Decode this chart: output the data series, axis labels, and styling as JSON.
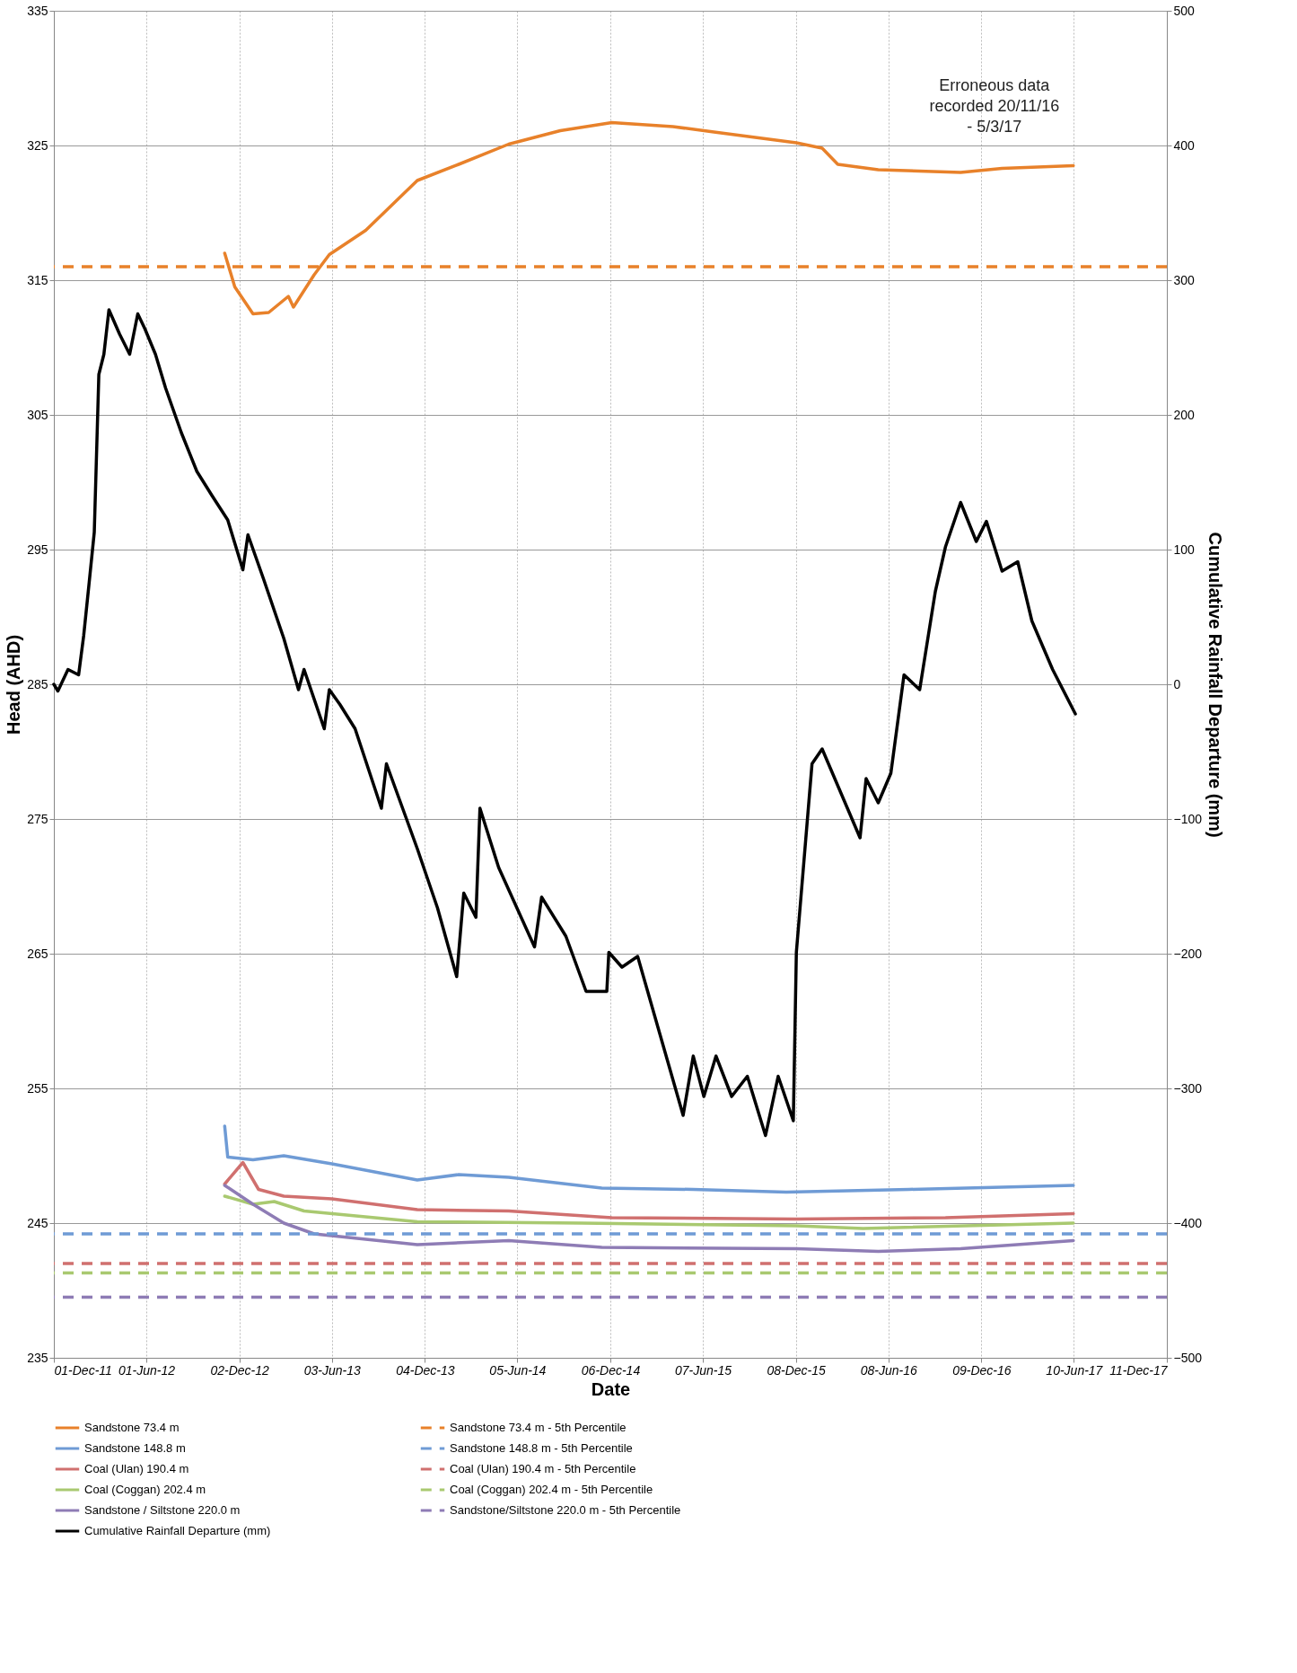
{
  "chart_data": {
    "type": "line",
    "xlabel": "Date",
    "ylabel": "Head (AHD)",
    "y2label": "Cumulative Rainfall Departure (mm)",
    "xlim": [
      "2011-12-01",
      "2017-12-11"
    ],
    "xticks": [
      {
        "value": "2011-12-01",
        "label": "01-Dec-11"
      },
      {
        "value": "2012-06-01",
        "label": "01-Jun-12"
      },
      {
        "value": "2012-12-02",
        "label": "02-Dec-12"
      },
      {
        "value": "2013-06-03",
        "label": "03-Jun-13"
      },
      {
        "value": "2013-12-04",
        "label": "04-Dec-13"
      },
      {
        "value": "2014-06-05",
        "label": "05-Jun-14"
      },
      {
        "value": "2014-12-06",
        "label": "06-Dec-14"
      },
      {
        "value": "2015-06-07",
        "label": "07-Jun-15"
      },
      {
        "value": "2015-12-08",
        "label": "08-Dec-15"
      },
      {
        "value": "2016-06-08",
        "label": "08-Jun-16"
      },
      {
        "value": "2016-12-09",
        "label": "09-Dec-16"
      },
      {
        "value": "2017-06-10",
        "label": "10-Jun-17"
      },
      {
        "value": "2017-12-11",
        "label": "11-Dec-17"
      }
    ],
    "ylim": [
      235,
      335
    ],
    "yticks": [
      235,
      245,
      255,
      265,
      275,
      285,
      295,
      305,
      315,
      325,
      335
    ],
    "y2lim": [
      -500,
      500
    ],
    "y2ticks": [
      -500,
      -400,
      -300,
      -200,
      -100,
      0,
      100,
      200,
      300,
      400,
      500
    ],
    "grid": true,
    "legend": "bottom",
    "series": [
      {
        "name": "Sandstone 73.4 m",
        "color": "#e8812a",
        "x": [
          "2012-11-03",
          "2012-11-23",
          "2012-12-29",
          "2013-01-29",
          "2013-03-09",
          "2013-03-19",
          "2013-04-29",
          "2013-05-29",
          "2013-08-09",
          "2013-11-19",
          "2014-02-09",
          "2014-05-19",
          "2014-08-29",
          "2014-12-09",
          "2015-04-09",
          "2015-06-29",
          "2015-12-09",
          "2016-01-29",
          "2016-02-29",
          "2016-05-19",
          "2016-10-29",
          "2017-01-19",
          "2017-06-09"
        ],
        "values": [
          317.0,
          314.5,
          312.5,
          312.6,
          313.8,
          313.0,
          315.4,
          316.9,
          318.7,
          322.4,
          323.6,
          325.1,
          326.1,
          326.7,
          326.4,
          326.0,
          325.2,
          324.8,
          323.6,
          323.2,
          323.0,
          323.3,
          323.5
        ]
      },
      {
        "name": "Sandstone 148.8 m",
        "color": "#6f9bd5",
        "x": [
          "2012-11-03",
          "2012-11-09",
          "2012-12-29",
          "2013-02-28",
          "2013-06-03",
          "2013-11-19",
          "2014-02-09",
          "2014-05-19",
          "2014-11-19",
          "2015-05-19",
          "2015-11-19",
          "2016-07-19",
          "2017-06-09"
        ],
        "values": [
          252.2,
          249.9,
          249.7,
          250.0,
          249.4,
          248.2,
          248.6,
          248.4,
          247.6,
          247.5,
          247.3,
          247.5,
          247.8
        ]
      },
      {
        "name": "Coal (Ulan) 190.4 m",
        "color": "#d0706f",
        "x": [
          "2012-11-03",
          "2012-12-09",
          "2013-01-09",
          "2013-02-28",
          "2013-06-03",
          "2013-11-19",
          "2014-05-19",
          "2014-12-09",
          "2015-12-09",
          "2016-09-29",
          "2017-06-09"
        ],
        "values": [
          247.9,
          249.5,
          247.5,
          247.0,
          246.8,
          246.0,
          245.9,
          245.4,
          245.3,
          245.4,
          245.7
        ]
      },
      {
        "name": "Coal (Coggan) 202.4 m",
        "color": "#a9c970",
        "x": [
          "2012-11-03",
          "2012-12-29",
          "2013-02-09",
          "2013-04-09",
          "2013-11-19",
          "2014-10-09",
          "2015-12-09",
          "2016-04-19",
          "2017-06-09"
        ],
        "values": [
          247.0,
          246.4,
          246.6,
          245.9,
          245.1,
          245.0,
          244.8,
          244.6,
          245.0
        ]
      },
      {
        "name": "Sandstone / Siltstone 220.0 m",
        "color": "#8e7cb5",
        "x": [
          "2012-11-03",
          "2012-12-29",
          "2013-02-28",
          "2013-04-29",
          "2013-11-19",
          "2014-05-19",
          "2014-11-19",
          "2015-12-09",
          "2016-05-19",
          "2016-10-29",
          "2017-06-09"
        ],
        "values": [
          247.8,
          246.4,
          245.0,
          244.2,
          243.4,
          243.7,
          243.2,
          243.1,
          242.9,
          243.1,
          243.7
        ]
      },
      {
        "name": "Cumulative Rainfall Departure (mm)",
        "color": "#000000",
        "axis": "y2",
        "x": [
          "2011-12-01",
          "2011-12-09",
          "2011-12-29",
          "2012-01-19",
          "2012-01-29",
          "2012-02-09",
          "2012-02-19",
          "2012-02-28",
          "2012-03-09",
          "2012-03-19",
          "2012-04-09",
          "2012-04-29",
          "2012-05-15",
          "2012-05-29",
          "2012-06-19",
          "2012-07-09",
          "2012-08-09",
          "2012-09-09",
          "2012-10-09",
          "2012-11-09",
          "2012-12-09",
          "2012-12-19",
          "2013-01-19",
          "2013-02-28",
          "2013-03-29",
          "2013-04-09",
          "2013-05-19",
          "2013-05-29",
          "2013-06-19",
          "2013-07-19",
          "2013-09-09",
          "2013-09-19",
          "2013-11-19",
          "2013-12-29",
          "2014-02-05",
          "2014-02-19",
          "2014-03-15",
          "2014-03-23",
          "2014-04-29",
          "2014-07-09",
          "2014-07-23",
          "2014-09-09",
          "2014-10-19",
          "2014-11-29",
          "2014-12-03",
          "2014-12-29",
          "2015-01-29",
          "2015-04-29",
          "2015-05-19",
          "2015-06-09",
          "2015-07-03",
          "2015-08-03",
          "2015-09-03",
          "2015-10-09",
          "2015-11-03",
          "2015-12-03",
          "2015-12-09",
          "2016-01-09",
          "2016-01-29",
          "2016-03-19",
          "2016-04-13",
          "2016-04-25",
          "2016-05-19",
          "2016-06-13",
          "2016-07-09",
          "2016-08-09",
          "2016-09-09",
          "2016-09-29",
          "2016-10-29",
          "2016-11-29",
          "2016-12-19",
          "2017-01-19",
          "2017-02-19",
          "2017-03-19",
          "2017-04-29",
          "2017-06-13"
        ],
        "values": [
          0,
          -5,
          11,
          7,
          36,
          76,
          113,
          230,
          245,
          278,
          260,
          245,
          275,
          264,
          245,
          220,
          187,
          158,
          140,
          122,
          85,
          111,
          78,
          34,
          -4,
          11,
          -33,
          -4,
          -15,
          -33,
          -92,
          -59,
          -122,
          -166,
          -217,
          -155,
          -173,
          -92,
          -136,
          -195,
          -158,
          -187,
          -228,
          -228,
          -199,
          -210,
          -202,
          -320,
          -276,
          -306,
          -276,
          -306,
          -291,
          -335,
          -291,
          -324,
          -199,
          -59,
          -48,
          -92,
          -114,
          -70,
          -88,
          -66,
          7,
          -4,
          69,
          102,
          135,
          106,
          121,
          84,
          91,
          47,
          11,
          -22
        ]
      }
    ],
    "ref_lines": [
      {
        "axis": "y",
        "value": 316.0,
        "label": "Sandstone 73.4 m - 5th Percentile",
        "color": "#e8812a",
        "line_style": "dashed"
      },
      {
        "axis": "y",
        "value": 244.2,
        "label": "Sandstone 148.8 m - 5th Percentile",
        "color": "#6f9bd5",
        "line_style": "dashed"
      },
      {
        "axis": "y",
        "value": 242.0,
        "label": "Coal (Ulan) 190.4 m - 5th Percentile",
        "color": "#d0706f",
        "line_style": "dashed"
      },
      {
        "axis": "y",
        "value": 241.3,
        "label": "Coal (Coggan) 202.4 m - 5th Percentile",
        "color": "#a9c970",
        "line_style": "dashed"
      },
      {
        "axis": "y",
        "value": 239.5,
        "label": "Sandstone/Siltstone 220.0 m - 5th Percentile",
        "color": "#8e7cb5",
        "line_style": "dashed"
      }
    ],
    "annotations": [
      "Erroneous data recorded 20/11/16 - 5/3/17"
    ]
  }
}
